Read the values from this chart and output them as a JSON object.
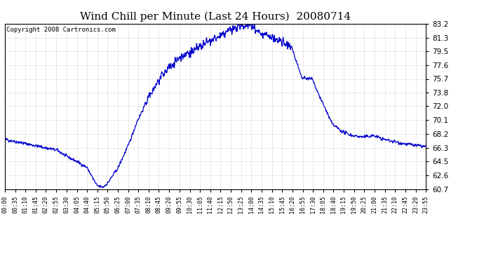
{
  "title": "Wind Chill per Minute (Last 24 Hours)  20080714",
  "copyright": "Copyright 2008 Cartronics.com",
  "line_color": "#0000CC",
  "background_color": "#ffffff",
  "grid_color": "#bbbbbb",
  "yticks": [
    60.7,
    62.6,
    64.5,
    66.3,
    68.2,
    70.1,
    72.0,
    73.8,
    75.7,
    77.6,
    79.5,
    81.3,
    83.2
  ],
  "ymin": 60.7,
  "ymax": 83.2,
  "xtick_labels": [
    "00:00",
    "00:35",
    "01:10",
    "01:45",
    "02:20",
    "02:55",
    "03:30",
    "04:05",
    "04:40",
    "05:15",
    "05:50",
    "06:25",
    "07:00",
    "07:35",
    "08:10",
    "08:45",
    "09:20",
    "09:55",
    "10:30",
    "11:05",
    "11:40",
    "12:15",
    "12:50",
    "13:25",
    "14:00",
    "14:35",
    "15:10",
    "15:45",
    "16:20",
    "16:55",
    "17:30",
    "18:05",
    "18:40",
    "19:15",
    "19:50",
    "20:25",
    "21:00",
    "21:35",
    "22:10",
    "22:45",
    "23:20",
    "23:55"
  ],
  "title_fontsize": 11,
  "copyright_fontsize": 6.5,
  "tick_fontsize": 6,
  "ytick_fontsize": 7.5,
  "line_width": 0.9
}
